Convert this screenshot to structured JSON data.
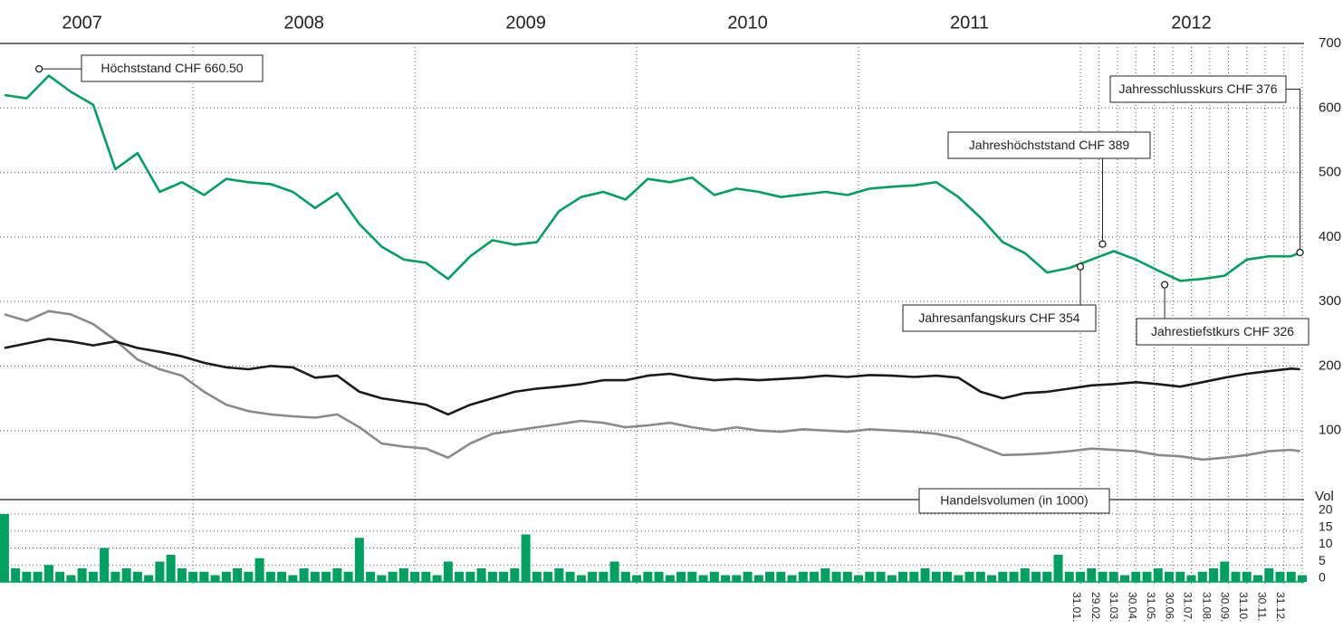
{
  "chart_data": [
    {
      "type": "line",
      "xlim": [
        2007.13,
        2013
      ],
      "ylim": [
        0,
        700
      ],
      "yticks": [
        100,
        200,
        300,
        400,
        500,
        600,
        700
      ],
      "grid": true,
      "xticks": [
        {
          "value": 2007.5,
          "label": "2007"
        },
        {
          "value": 2008.5,
          "label": "2008"
        },
        {
          "value": 2009.5,
          "label": "2009"
        },
        {
          "value": 2010.5,
          "label": "2010"
        },
        {
          "value": 2011.5,
          "label": "2011"
        },
        {
          "value": 2012.5,
          "label": "2012"
        }
      ],
      "xgrid": [
        2008,
        2009,
        2010,
        2011,
        2012
      ],
      "month_ticks": [
        {
          "value": 2012.083,
          "label": "31.01."
        },
        {
          "value": 2012.167,
          "label": "29.02."
        },
        {
          "value": 2012.25,
          "label": "31.03."
        },
        {
          "value": 2012.333,
          "label": "30.04."
        },
        {
          "value": 2012.417,
          "label": "31.05."
        },
        {
          "value": 2012.5,
          "label": "30.06."
        },
        {
          "value": 2012.583,
          "label": "31.07."
        },
        {
          "value": 2012.667,
          "label": "31.08."
        },
        {
          "value": 2012.75,
          "label": "30.09."
        },
        {
          "value": 2012.833,
          "label": "31.10."
        },
        {
          "value": 2012.917,
          "label": "30.11."
        },
        {
          "value": 2013,
          "label": "31.12."
        }
      ],
      "x": [
        2007.15,
        2007.25,
        2007.35,
        2007.45,
        2007.55,
        2007.65,
        2007.75,
        2007.85,
        2007.95,
        2008.05,
        2008.15,
        2008.25,
        2008.35,
        2008.45,
        2008.55,
        2008.65,
        2008.75,
        2008.85,
        2008.95,
        2009.05,
        2009.15,
        2009.25,
        2009.35,
        2009.45,
        2009.55,
        2009.65,
        2009.75,
        2009.85,
        2009.95,
        2010.05,
        2010.15,
        2010.25,
        2010.35,
        2010.45,
        2010.55,
        2010.65,
        2010.75,
        2010.85,
        2010.95,
        2011.05,
        2011.15,
        2011.25,
        2011.35,
        2011.45,
        2011.55,
        2011.65,
        2011.75,
        2011.85,
        2011.95,
        2012.05,
        2012.15,
        2012.25,
        2012.35,
        2012.45,
        2012.55,
        2012.65,
        2012.75,
        2012.85,
        2012.95,
        2012.99
      ],
      "series": [
        {
          "color": "#8a8a8a",
          "values": [
            280,
            270,
            285,
            280,
            265,
            240,
            210,
            195,
            185,
            160,
            140,
            130,
            125,
            122,
            120,
            125,
            105,
            80,
            75,
            72,
            58,
            80,
            95,
            100,
            105,
            110,
            115,
            112,
            105,
            108,
            112,
            105,
            100,
            105,
            100,
            98,
            102,
            100,
            98,
            102,
            100,
            98,
            95,
            88,
            75,
            62,
            63,
            65,
            68,
            72,
            70,
            68,
            62,
            60,
            55,
            58,
            62,
            68,
            70,
            68
          ]
        },
        {
          "color": "#1a1a1a",
          "values": [
            228,
            235,
            242,
            238,
            232,
            238,
            228,
            222,
            215,
            205,
            198,
            195,
            200,
            198,
            182,
            185,
            160,
            150,
            145,
            140,
            125,
            140,
            150,
            160,
            165,
            168,
            172,
            178,
            178,
            185,
            188,
            182,
            178,
            180,
            178,
            180,
            182,
            185,
            183,
            186,
            185,
            183,
            185,
            182,
            160,
            150,
            158,
            160,
            165,
            170,
            172,
            175,
            172,
            168,
            175,
            182,
            188,
            192,
            196,
            195
          ]
        },
        {
          "color": "#00a060",
          "values": [
            620,
            615,
            650,
            625,
            605,
            505,
            530,
            470,
            485,
            465,
            490,
            485,
            482,
            470,
            445,
            468,
            420,
            385,
            365,
            360,
            335,
            370,
            395,
            388,
            392,
            440,
            462,
            470,
            458,
            490,
            485,
            492,
            465,
            475,
            470,
            462,
            466,
            470,
            465,
            475,
            478,
            480,
            485,
            462,
            430,
            392,
            375,
            345,
            352,
            365,
            378,
            365,
            348,
            332,
            335,
            340,
            365,
            370,
            370,
            376
          ]
        }
      ],
      "annotations": [
        {
          "text": "Höchststand CHF 660.50",
          "x": 2007.306,
          "y": 660.5
        },
        {
          "text": "Jahresschlusskurs CHF 376",
          "x": 2012.99,
          "y": 376
        },
        {
          "text": "Jahreshöchststand CHF 389",
          "x": 2012.1,
          "y": 389
        },
        {
          "text": "Jahresanfangskurs CHF 354",
          "x": 2012.0,
          "y": 354
        },
        {
          "text": "Jahrestiefstkurs CHF 326",
          "x": 2012.38,
          "y": 326
        }
      ]
    },
    {
      "type": "bar",
      "title": "Handelsvolumen (in 1000)",
      "ylabel": "Vol",
      "color": "#00a060",
      "xlim": [
        2007.13,
        2013
      ],
      "ylim": [
        0,
        20
      ],
      "yticks": [
        0,
        5,
        10,
        15,
        20
      ],
      "grid": true,
      "x": [
        2007.15,
        2007.2,
        2007.25,
        2007.3,
        2007.35,
        2007.4,
        2007.45,
        2007.5,
        2007.55,
        2007.6,
        2007.65,
        2007.7,
        2007.75,
        2007.8,
        2007.85,
        2007.9,
        2007.95,
        2008.0,
        2008.05,
        2008.1,
        2008.15,
        2008.2,
        2008.25,
        2008.3,
        2008.35,
        2008.4,
        2008.45,
        2008.5,
        2008.55,
        2008.6,
        2008.65,
        2008.7,
        2008.75,
        2008.8,
        2008.85,
        2008.9,
        2008.95,
        2009.0,
        2009.05,
        2009.1,
        2009.15,
        2009.2,
        2009.25,
        2009.3,
        2009.35,
        2009.4,
        2009.45,
        2009.5,
        2009.55,
        2009.6,
        2009.65,
        2009.7,
        2009.75,
        2009.8,
        2009.85,
        2009.9,
        2009.95,
        2010.0,
        2010.05,
        2010.1,
        2010.15,
        2010.2,
        2010.25,
        2010.3,
        2010.35,
        2010.4,
        2010.45,
        2010.5,
        2010.55,
        2010.6,
        2010.65,
        2010.7,
        2010.75,
        2010.8,
        2010.85,
        2010.9,
        2010.95,
        2011.0,
        2011.05,
        2011.1,
        2011.15,
        2011.2,
        2011.25,
        2011.3,
        2011.35,
        2011.4,
        2011.45,
        2011.5,
        2011.55,
        2011.6,
        2011.65,
        2011.7,
        2011.75,
        2011.8,
        2011.85,
        2011.9,
        2011.95,
        2012.0,
        2012.05,
        2012.1,
        2012.15,
        2012.2,
        2012.25,
        2012.3,
        2012.35,
        2012.4,
        2012.45,
        2012.5,
        2012.55,
        2012.6,
        2012.65,
        2012.7,
        2012.75,
        2012.8,
        2012.85,
        2012.9,
        2012.95,
        2013.0
      ],
      "values": [
        20,
        4,
        3,
        3,
        5,
        3,
        2,
        4,
        3,
        10,
        3,
        4,
        3,
        2,
        6,
        8,
        4,
        3,
        3,
        2,
        3,
        4,
        3,
        7,
        3,
        3,
        2,
        4,
        3,
        3,
        4,
        3,
        13,
        3,
        2,
        3,
        4,
        3,
        3,
        2,
        6,
        3,
        3,
        4,
        3,
        3,
        4,
        14,
        3,
        3,
        4,
        3,
        2,
        3,
        3,
        6,
        3,
        2,
        3,
        3,
        2,
        3,
        3,
        2,
        3,
        2,
        2,
        3,
        2,
        3,
        3,
        2,
        3,
        3,
        4,
        3,
        3,
        2,
        3,
        3,
        2,
        3,
        3,
        4,
        3,
        3,
        2,
        3,
        3,
        2,
        3,
        3,
        4,
        3,
        3,
        8,
        3,
        3,
        4,
        3,
        3,
        2,
        3,
        3,
        4,
        3,
        3,
        2,
        3,
        4,
        6,
        3,
        3,
        2,
        4,
        3,
        3,
        2
      ]
    }
  ]
}
